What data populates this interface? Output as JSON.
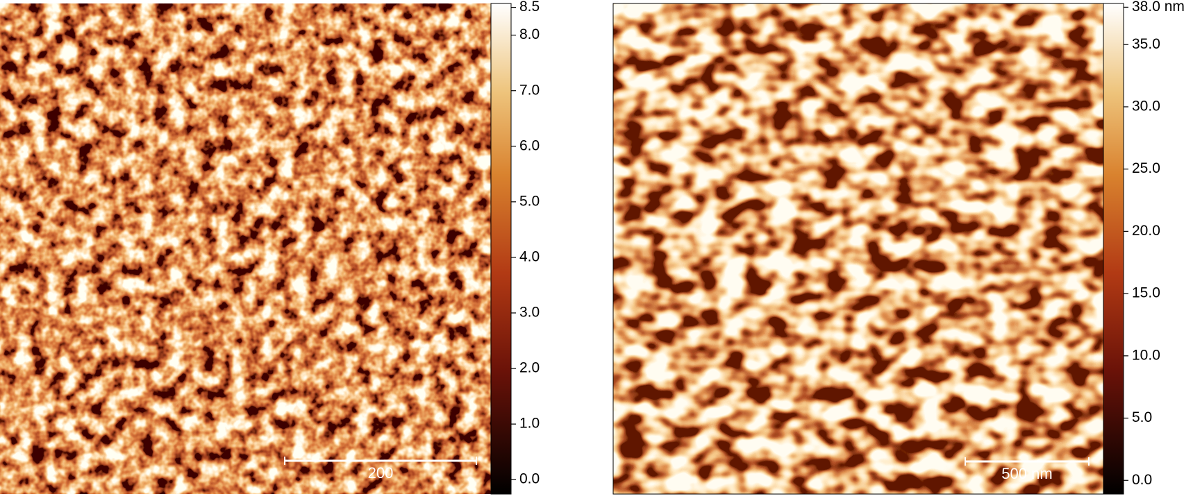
{
  "images": [
    {
      "colorbar": {
        "lim": [
          -0.26,
          8.57
        ],
        "ticks": [
          {
            "value": 0,
            "label": "0.0"
          },
          {
            "value": 1,
            "label": "1.0"
          },
          {
            "value": 2,
            "label": "2.0"
          },
          {
            "value": 3,
            "label": "3.0"
          },
          {
            "value": 4,
            "label": "4.0"
          },
          {
            "value": 5,
            "label": "5.0"
          },
          {
            "value": 6,
            "label": "6.0"
          },
          {
            "value": 7,
            "label": "7.0"
          },
          {
            "value": 8,
            "label": "8.0"
          },
          {
            "value": 8.5,
            "label": "8.5"
          }
        ]
      },
      "scale_bar": {
        "label": "200"
      }
    },
    {
      "colorbar": {
        "lim": [
          -1.1,
          38.3
        ],
        "ticks": [
          {
            "value": 0,
            "label": "0.0"
          },
          {
            "value": 5,
            "label": "5.0"
          },
          {
            "value": 10,
            "label": "10.0"
          },
          {
            "value": 15,
            "label": "15.0"
          },
          {
            "value": 20,
            "label": "20.0"
          },
          {
            "value": 25,
            "label": "25.0"
          },
          {
            "value": 30,
            "label": "30.0"
          },
          {
            "value": 35,
            "label": "35.0"
          },
          {
            "value": 38,
            "label": "38.0 nm"
          }
        ]
      },
      "scale_bar": {
        "label": "500 nm"
      }
    }
  ]
}
